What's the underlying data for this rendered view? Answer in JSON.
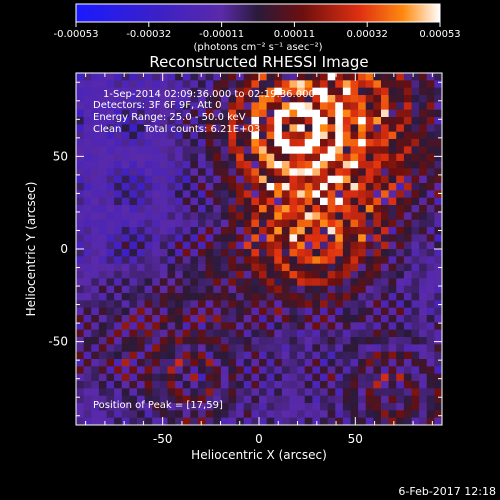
{
  "chart_data": {
    "type": "heatmap",
    "title": "Reconstructed RHESSI Image",
    "xlabel": "Heliocentric X (arcsec)",
    "ylabel": "Heliocentric Y (arcsec)",
    "xlim": [
      -95,
      95
    ],
    "ylim": [
      -95,
      95
    ],
    "xticks": [
      -50,
      0,
      50
    ],
    "yticks": [
      -50,
      0,
      50
    ],
    "colorbar": {
      "range": [
        -0.00053,
        0.00053
      ],
      "tick_labels": [
        "-0.00053",
        "-0.00032",
        "-0.00011",
        "0.00011",
        "0.00032",
        "0.00053"
      ],
      "unit_label": "(photons cm⁻² s⁻¹ asec⁻²)",
      "colors": [
        "#1a1aff",
        "#3b20c8",
        "#5a2aa8",
        "#2a1a3a",
        "#6b0f0f",
        "#e03010",
        "#ff8a10",
        "#ffffff"
      ]
    },
    "annotations": {
      "time": "1-Sep-2014 02:09:36.000 to 02:19:36.000",
      "detectors": "Detectors: 3F 6F 9F, Att 0",
      "energy": "Energy Range: 25.0 - 50.0 keV",
      "method": "Clean",
      "counts": "Total counts: 6.21E+03",
      "peak": "Position of Peak = [17,59]"
    },
    "sources": [
      {
        "x": 20,
        "y": 65,
        "strength": 1.0
      },
      {
        "x": 30,
        "y": 5,
        "strength": 0.55
      },
      {
        "x": 55,
        "y": 80,
        "strength": 0.45
      },
      {
        "x": -35,
        "y": -70,
        "strength": 0.3
      },
      {
        "x": 70,
        "y": -80,
        "strength": 0.35
      }
    ]
  },
  "footer": {
    "date": "6-Feb-2017 12:18"
  }
}
